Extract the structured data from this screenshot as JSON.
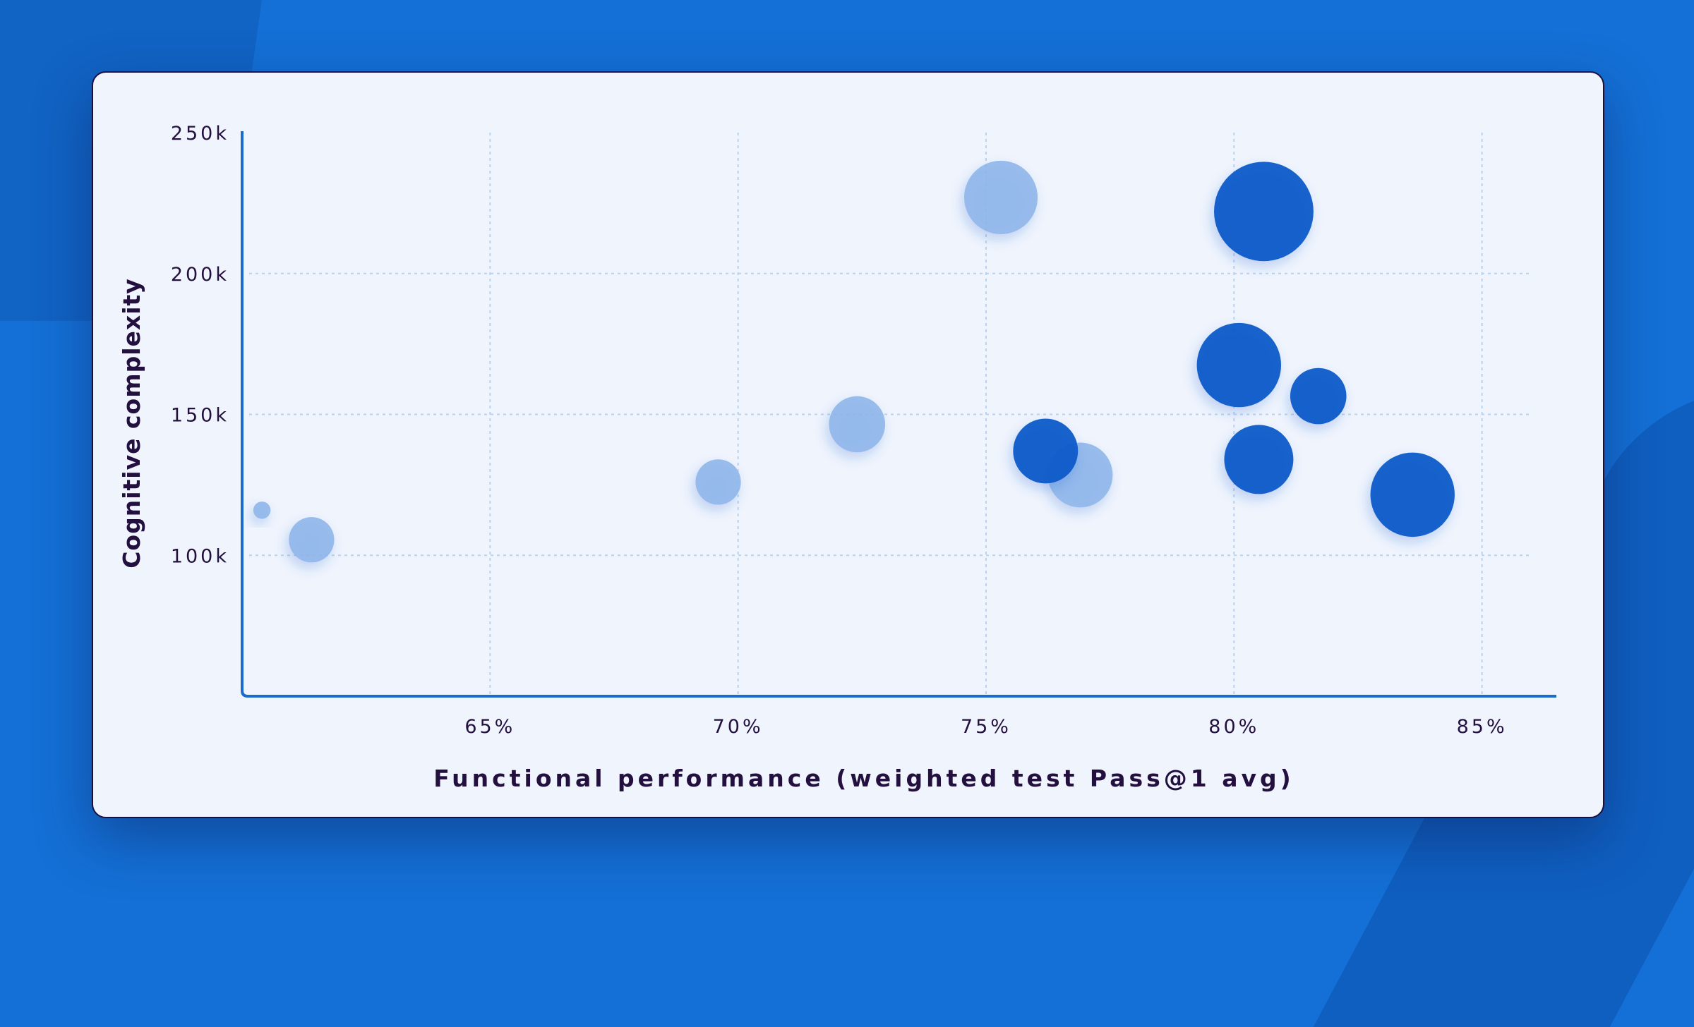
{
  "chart_data": {
    "type": "scatter",
    "subtype": "bubble",
    "title": "",
    "xlabel": "Functional performance (weighted test Pass@1 avg)",
    "ylabel": "Cognitive complexity",
    "xlim": [
      60,
      86.5
    ],
    "ylim": [
      50000,
      250000
    ],
    "x_ticks": [
      {
        "value": 65,
        "label": "65%"
      },
      {
        "value": 70,
        "label": "70%"
      },
      {
        "value": 75,
        "label": "75%"
      },
      {
        "value": 80,
        "label": "80%"
      },
      {
        "value": 85,
        "label": "85%"
      }
    ],
    "y_ticks": [
      {
        "value": 100000,
        "label": "100k"
      },
      {
        "value": 150000,
        "label": "150k"
      },
      {
        "value": 200000,
        "label": "200k"
      },
      {
        "value": 250000,
        "label": "250k"
      }
    ],
    "grid": true,
    "colors": {
      "light": "#8fb6ea",
      "dark": "#0b5bc9",
      "axis": "#1a6cc8",
      "grid": "#b9d3ef"
    },
    "series": [
      {
        "color_key": "light",
        "points": [
          {
            "x": 60.4,
            "y": 116000,
            "size": 8
          },
          {
            "x": 61.4,
            "y": 105500,
            "size": 21
          },
          {
            "x": 69.6,
            "y": 126000,
            "size": 21
          },
          {
            "x": 72.4,
            "y": 146500,
            "size": 26
          },
          {
            "x": 75.3,
            "y": 227000,
            "size": 34
          },
          {
            "x": 76.9,
            "y": 128500,
            "size": 30
          }
        ]
      },
      {
        "color_key": "dark",
        "points": [
          {
            "x": 76.2,
            "y": 137000,
            "size": 30
          },
          {
            "x": 80.6,
            "y": 222000,
            "size": 46
          },
          {
            "x": 80.1,
            "y": 167500,
            "size": 39
          },
          {
            "x": 81.7,
            "y": 156500,
            "size": 26
          },
          {
            "x": 80.5,
            "y": 134000,
            "size": 32
          },
          {
            "x": 83.6,
            "y": 121500,
            "size": 39
          }
        ]
      }
    ]
  }
}
